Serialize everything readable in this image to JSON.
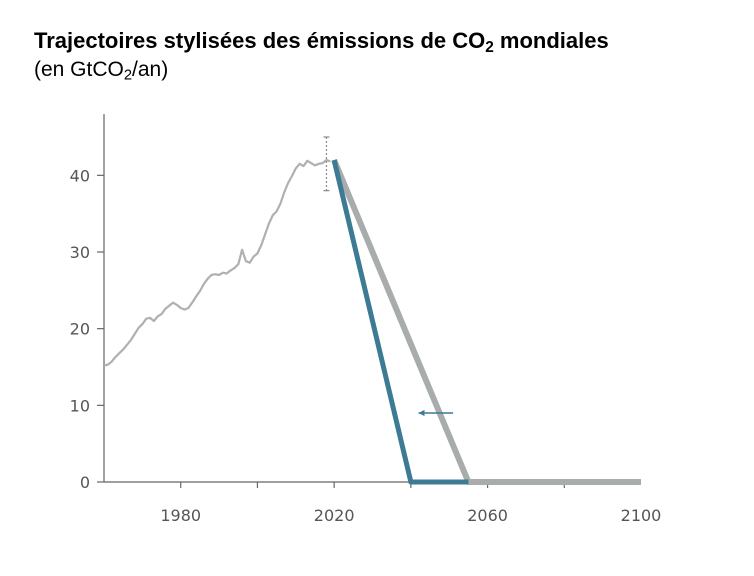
{
  "header": {
    "title_main": "Trajectoires stylisées des émissions de CO",
    "title_sub": "2",
    "title_end": " mondiales",
    "subtitle_start": "(en GtCO",
    "subtitle_sub": "2",
    "subtitle_end": "/an)"
  },
  "chart_data": {
    "type": "line",
    "title": "Trajectoires stylisées des émissions de CO2 mondiales",
    "ylabel": "(en GtCO2/an)",
    "xlabel": "",
    "xlim": [
      1960,
      2100
    ],
    "ylim": [
      0,
      48
    ],
    "x_ticks": [
      1980,
      2020,
      2060,
      2100
    ],
    "y_ticks": [
      0,
      10,
      20,
      30,
      40
    ],
    "x_tick_labels": [
      "1980",
      "2020",
      "2060",
      "2100"
    ],
    "y_tick_labels": [
      "0",
      "10",
      "20",
      "30",
      "40"
    ],
    "grid": false,
    "legend": "none",
    "colors": {
      "historical": "#b0b0b0",
      "pathway_late": "#a9acac",
      "pathway_early": "#3d7a93",
      "axis": "#666666"
    },
    "series": [
      {
        "key": "historical",
        "x": [
          1960,
          1961,
          1962,
          1963,
          1964,
          1965,
          1966,
          1967,
          1968,
          1969,
          1970,
          1971,
          1972,
          1973,
          1974,
          1975,
          1976,
          1977,
          1978,
          1979,
          1980,
          1981,
          1982,
          1983,
          1984,
          1985,
          1986,
          1987,
          1988,
          1989,
          1990,
          1991,
          1992,
          1993,
          1994,
          1995,
          1996,
          1997,
          1998,
          1999,
          2000,
          2001,
          2002,
          2003,
          2004,
          2005,
          2006,
          2007,
          2008,
          2009,
          2010,
          2011,
          2012,
          2013,
          2014,
          2015,
          2016,
          2017,
          2018,
          2019
        ],
        "values": [
          15.2,
          15.3,
          15.7,
          16.3,
          16.8,
          17.3,
          17.9,
          18.5,
          19.3,
          20.1,
          20.6,
          21.3,
          21.4,
          21.0,
          21.6,
          21.9,
          22.6,
          23.0,
          23.4,
          23.1,
          22.7,
          22.5,
          22.7,
          23.4,
          24.2,
          24.9,
          25.8,
          26.5,
          27.0,
          27.1,
          27.0,
          27.3,
          27.2,
          27.6,
          27.9,
          28.4,
          30.3,
          28.8,
          28.6,
          29.4,
          29.8,
          30.9,
          32.3,
          33.7,
          34.8,
          35.3,
          36.3,
          37.8,
          39.0,
          39.9,
          40.9,
          41.5,
          41.2,
          41.9,
          41.6,
          41.3,
          41.5,
          41.6,
          42.0,
          41.8
        ]
      },
      {
        "key": "pathway_late",
        "x": [
          2020,
          2055,
          2100
        ],
        "values": [
          42,
          0,
          0
        ]
      },
      {
        "key": "pathway_early",
        "x": [
          2020,
          2040,
          2055
        ],
        "values": [
          42,
          0,
          0
        ]
      }
    ],
    "annotations": [
      {
        "type": "error_bar",
        "x": 2018,
        "y_low": 38,
        "y_high": 45
      },
      {
        "type": "arrow",
        "x_from": 2051,
        "x_to": 2042,
        "y": 9,
        "color": "#3d7a93"
      }
    ]
  }
}
